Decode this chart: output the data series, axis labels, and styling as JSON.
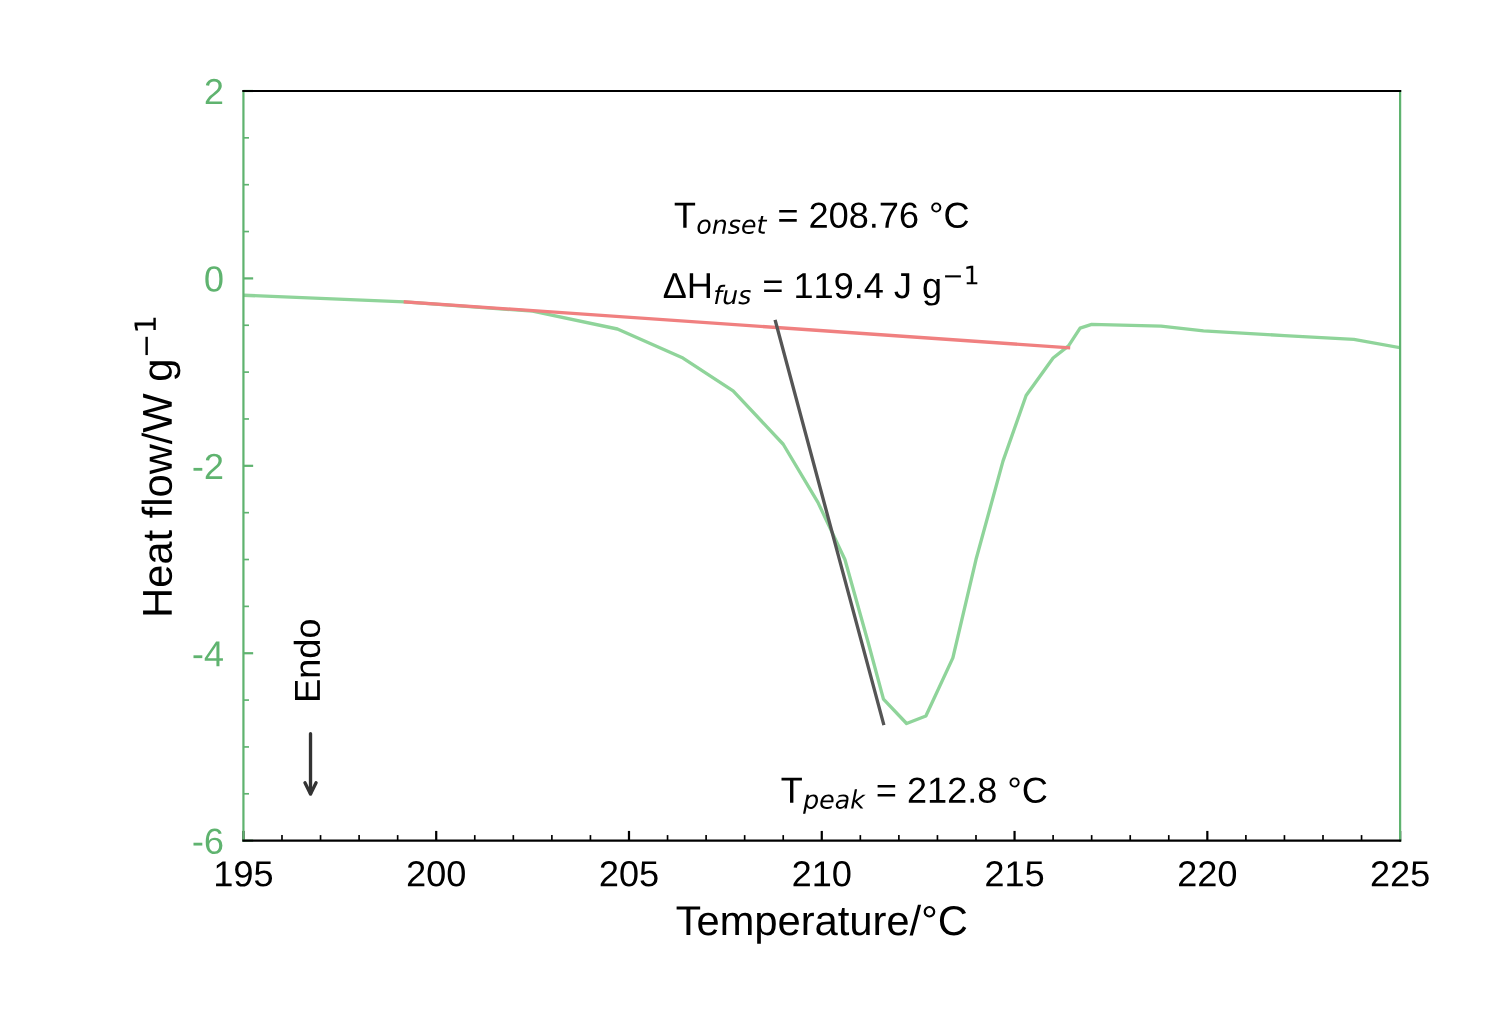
{
  "chart_data": {
    "type": "line",
    "xlabel": "Temperature/°C",
    "ylabel": "Heat flow/W g$^{−1}$",
    "xlim": [
      195,
      225
    ],
    "xticks": [
      195,
      200,
      205,
      210,
      215,
      220,
      225
    ],
    "ylim": [
      -6,
      2
    ],
    "yticks": [
      -6,
      -4,
      -2,
      0,
      2
    ],
    "grid": false,
    "marker": "none",
    "line_style": "solid",
    "series": [
      {
        "color": "#8fd49a",
        "x": [
          195,
          199.18,
          202.5,
          204.7,
          206.4,
          207.7,
          209.0,
          209.9,
          210.6,
          211.2,
          211.6,
          212.2,
          212.7,
          213.4,
          214.0,
          214.7,
          215.3,
          216.0,
          216.4,
          216.7,
          217.0,
          218.8,
          219.9,
          222.0,
          223.8,
          225
        ],
        "values": [
          -0.18,
          -0.25,
          -0.35,
          -0.54,
          -0.85,
          -1.2,
          -1.77,
          -2.39,
          -3.0,
          -3.88,
          -4.49,
          -4.75,
          -4.67,
          -4.05,
          -3.0,
          -1.95,
          -1.25,
          -0.85,
          -0.72,
          -0.53,
          -0.49,
          -0.51,
          -0.56,
          -0.61,
          -0.65,
          -0.74
        ]
      },
      {
        "color": "#f08080",
        "x": [
          199.2,
          216.4
        ],
        "values": [
          -0.25,
          -0.74
        ]
      },
      {
        "color": "#555555",
        "x": [
          208.8,
          211.6
        ],
        "values": [
          -0.46,
          -4.75
        ]
      }
    ],
    "annotations": [
      "T$_{onset}$ = 208.76 °C",
      "ΔH$_{fus}$ = 119.4 J g$^{−1}$",
      "T$_{peak}$ = 212.8 °C",
      "Endo"
    ]
  }
}
